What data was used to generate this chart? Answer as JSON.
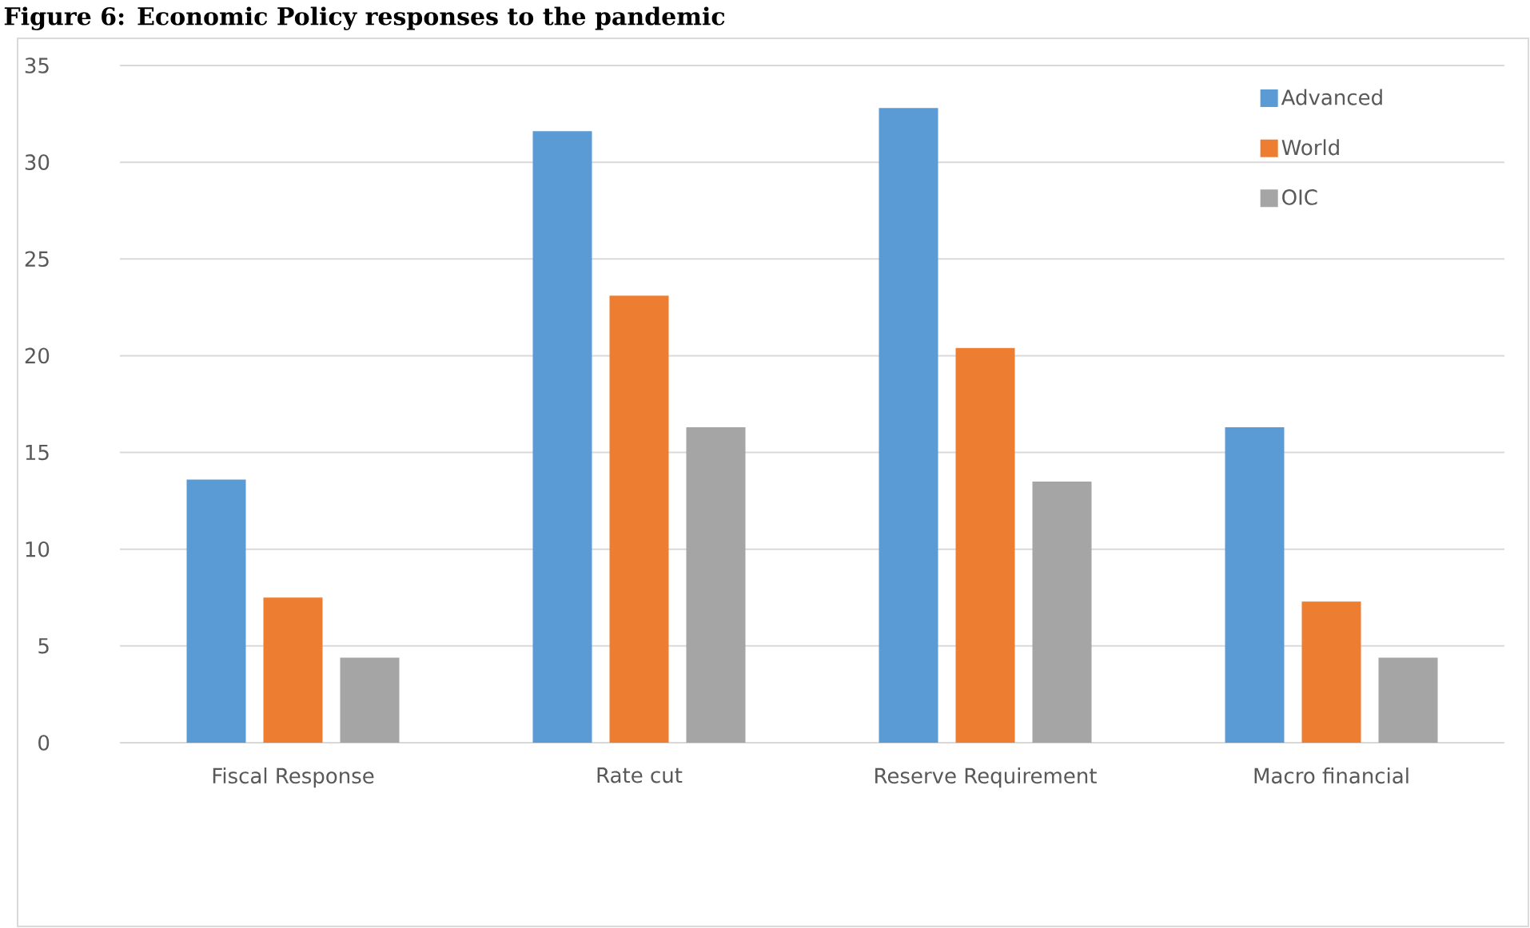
{
  "chart_data": {
    "type": "bar",
    "title": "Figure 6: Economic Policy responses to the pandemic",
    "categories": [
      "Fiscal Response",
      "Rate cut",
      "Reserve Requirement",
      "Macro financial"
    ],
    "series": [
      {
        "name": "Advanced",
        "color": "#5b9bd5",
        "values": [
          13.6,
          31.6,
          32.8,
          16.3
        ]
      },
      {
        "name": "World",
        "color": "#ed7d31",
        "values": [
          7.5,
          23.1,
          20.4,
          7.3
        ]
      },
      {
        "name": "OIC",
        "color": "#a5a5a5",
        "values": [
          4.4,
          16.3,
          13.5,
          4.4
        ]
      }
    ],
    "ylim": [
      0,
      35
    ],
    "yticks": [
      0,
      5,
      10,
      15,
      20,
      25,
      30,
      35
    ],
    "grid": "y",
    "legend": "top right"
  }
}
